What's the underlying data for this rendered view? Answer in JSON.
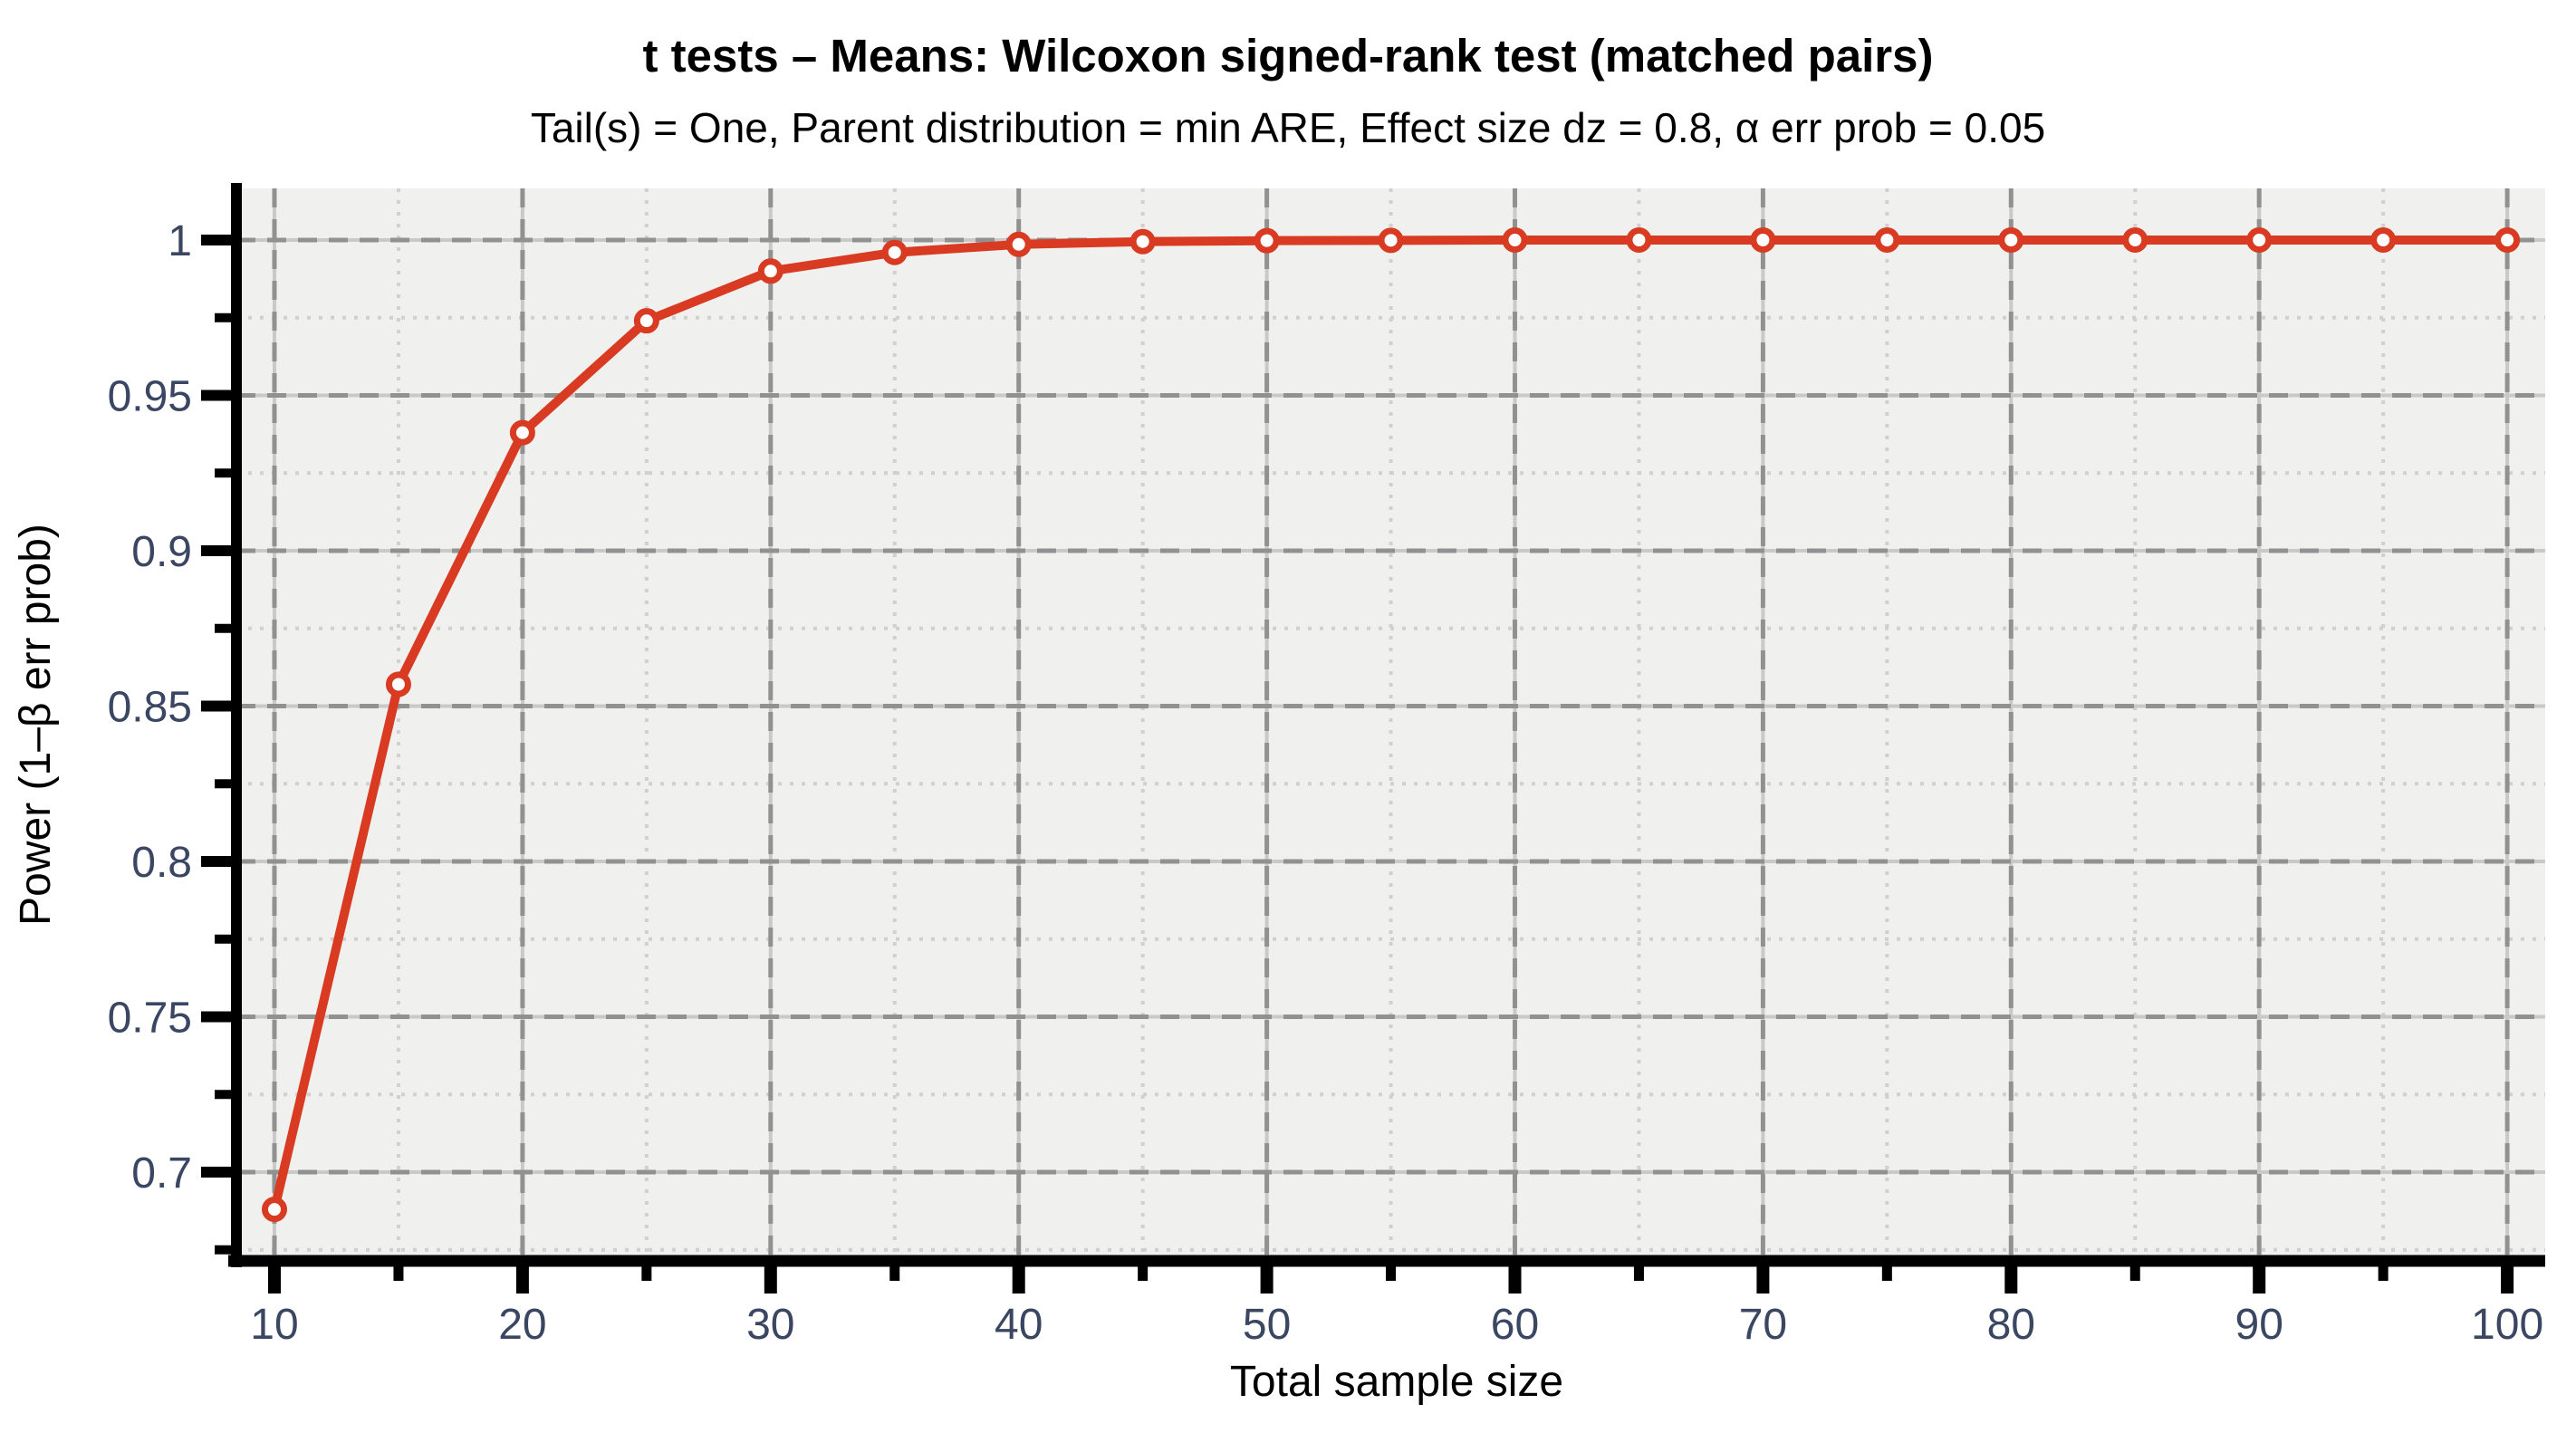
{
  "chart_data": {
    "type": "line",
    "title": "t tests – Means: Wilcoxon signed-rank test (matched pairs)",
    "subtitle": "Tail(s) = One, Parent distribution = min ARE, Effect size dz = 0.8, α err prob = 0.05",
    "xlabel": "Total sample size",
    "ylabel": "Power (1–β err prob)",
    "x": [
      10,
      15,
      20,
      25,
      30,
      35,
      40,
      45,
      50,
      55,
      60,
      65,
      70,
      75,
      80,
      85,
      90,
      95,
      100
    ],
    "series": [
      {
        "name": "Power",
        "values": [
          0.688,
          0.857,
          0.938,
          0.974,
          0.99,
          0.996,
          0.9986,
          0.9995,
          0.9998,
          0.9999,
          1,
          1,
          1,
          1,
          1,
          1,
          1,
          1,
          1
        ]
      }
    ],
    "x_ticks_major": [
      10,
      20,
      30,
      40,
      50,
      60,
      70,
      80,
      90,
      100
    ],
    "x_tick_labels": [
      "10",
      "20",
      "30",
      "40",
      "50",
      "60",
      "70",
      "80",
      "90",
      "100"
    ],
    "x_ticks_minor": [
      15,
      25,
      35,
      45,
      55,
      65,
      75,
      85,
      95
    ],
    "y_ticks_major": [
      1,
      0.95,
      0.9,
      0.85,
      0.8,
      0.75,
      0.7
    ],
    "y_tick_labels": [
      "1",
      "0.95",
      "0.9",
      "0.85",
      "0.8",
      "0.75",
      "0.7"
    ],
    "y_ticks_minor": [
      0.975,
      0.925,
      0.875,
      0.825,
      0.775,
      0.725,
      0.675
    ],
    "xlim": [
      8.5,
      101.6
    ],
    "ylim": [
      0.672,
      1.0166
    ],
    "grid": "major dashed gray, minor dotted light gray, on",
    "legend_position": "none",
    "marker": "open-circle",
    "colors": {
      "curve": "#d93b22",
      "marker_fill": "#ffffff",
      "plot_bg": "#f0f0ee",
      "grid_major": "#919191",
      "grid_major_base": "#c9c9c9",
      "grid_minor": "#d0d0d0",
      "axis": "#000000",
      "tick_label": "#3a4662",
      "text": "#000000"
    }
  }
}
